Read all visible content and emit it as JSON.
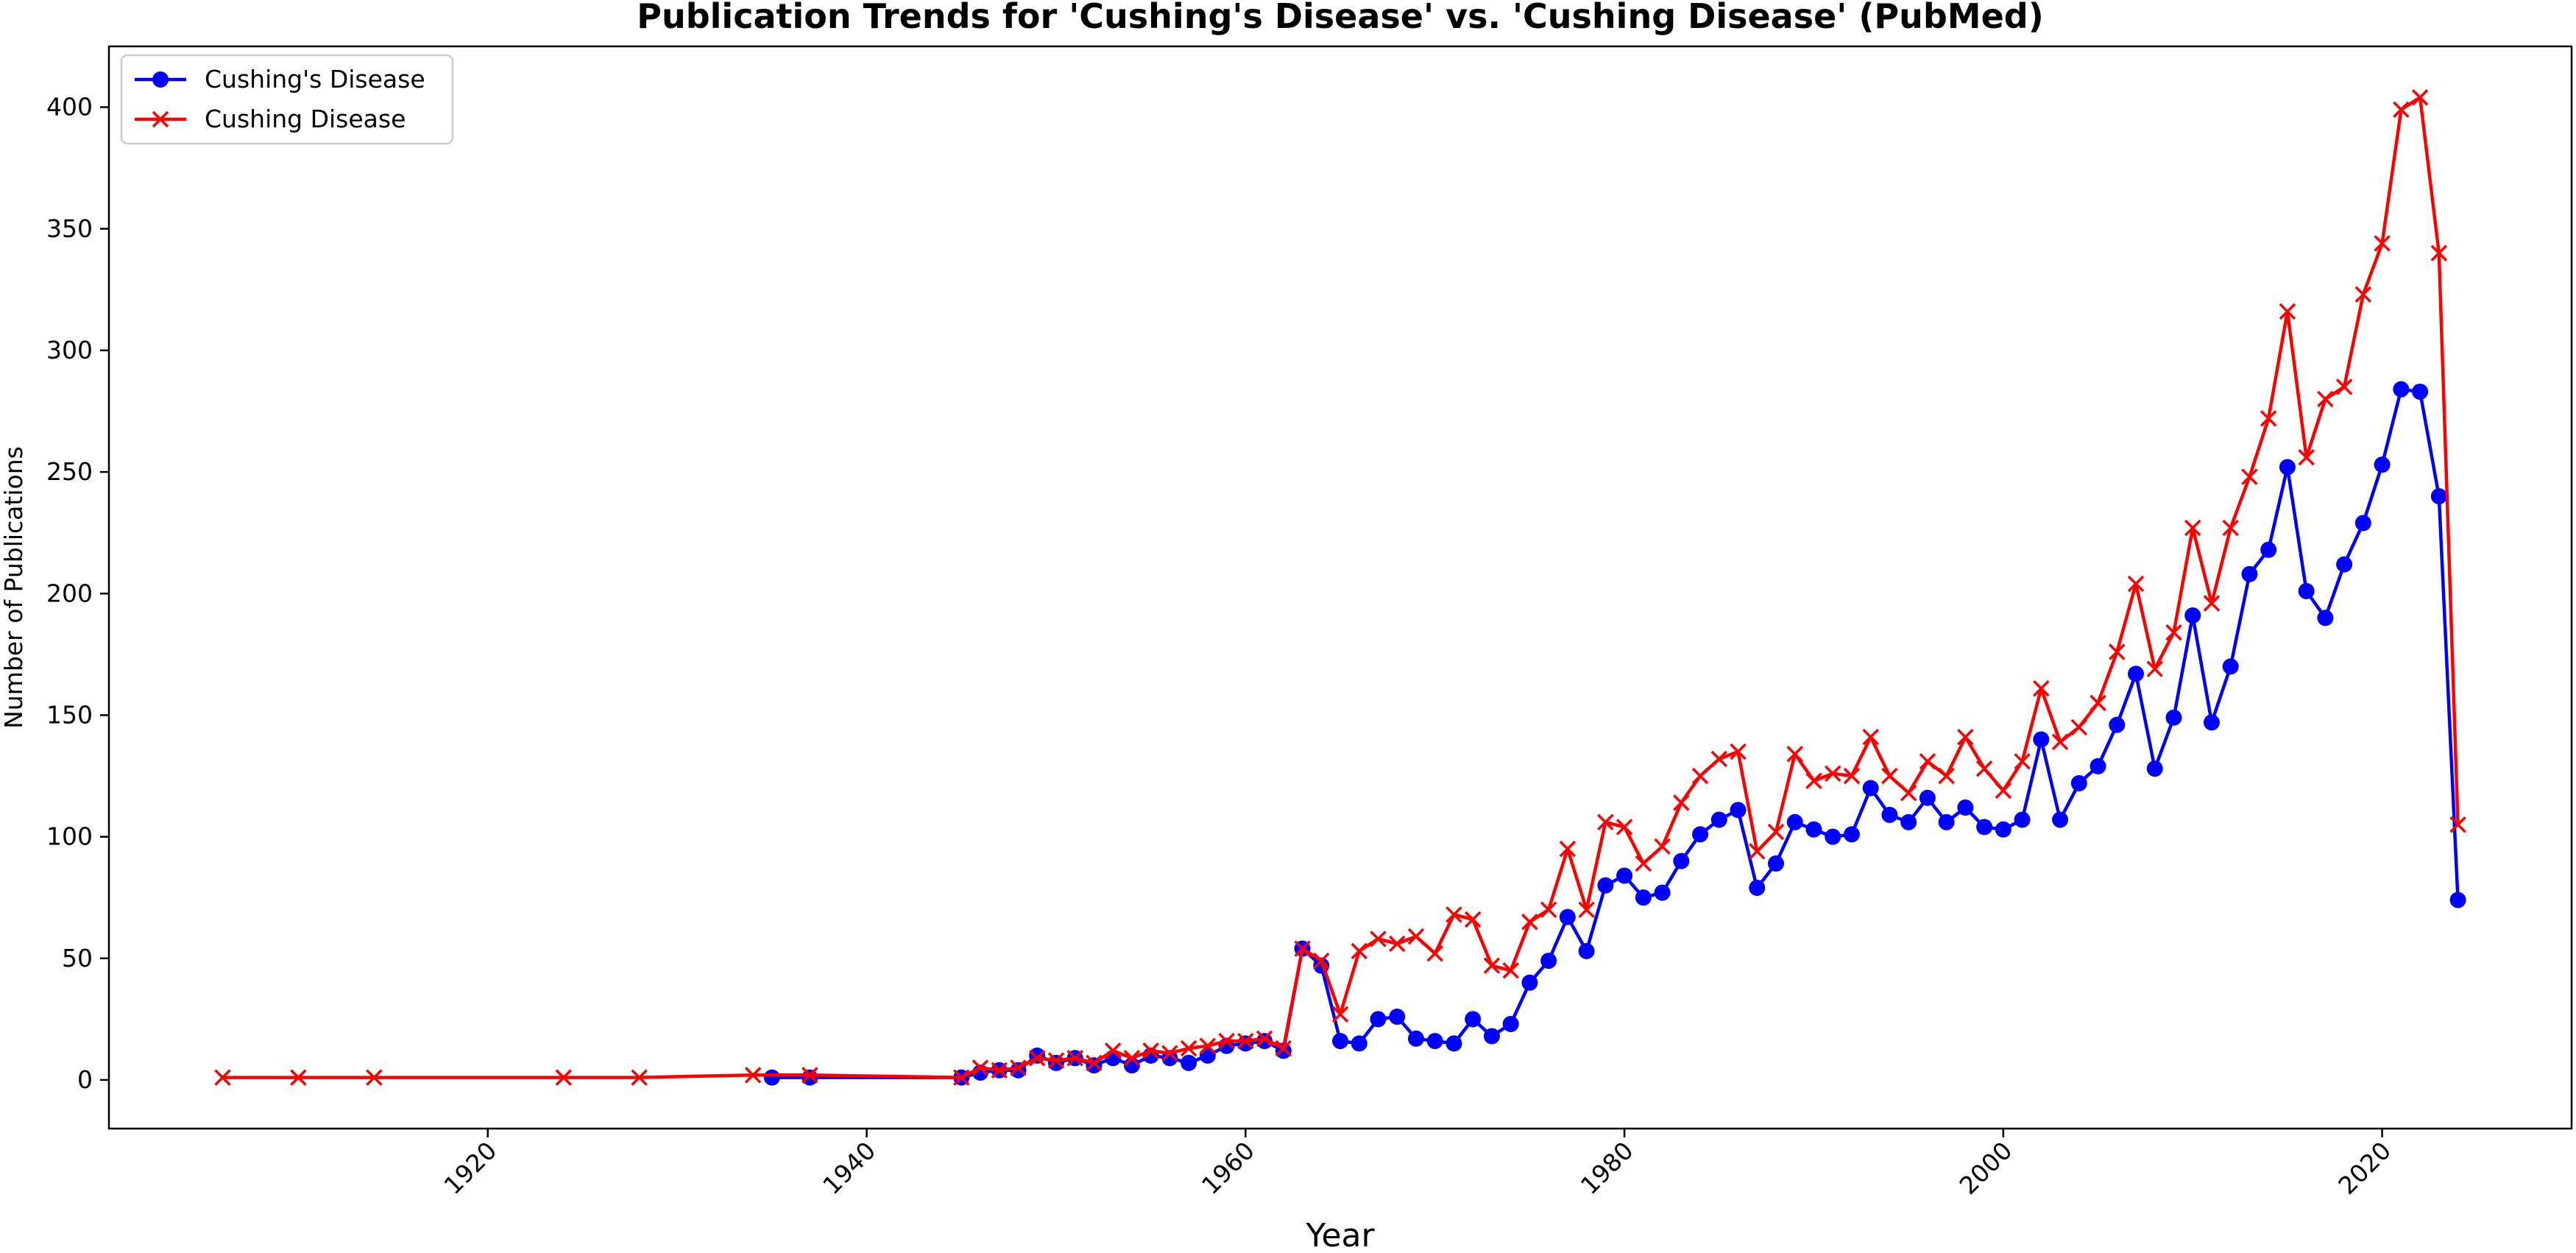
{
  "chart_data": {
    "type": "line",
    "title": "Publication Trends for 'Cushing's Disease' vs. 'Cushing Disease' (PubMed)",
    "xlabel": "Year",
    "ylabel": "Number of Publications",
    "xlim": [
      1900,
      2030
    ],
    "ylim": [
      -20,
      425
    ],
    "xticks": [
      1920,
      1940,
      1960,
      1980,
      2000,
      2020
    ],
    "yticks": [
      0,
      50,
      100,
      150,
      200,
      250,
      300,
      350,
      400
    ],
    "grid": false,
    "legend_position": "top-left",
    "series": [
      {
        "name": "Cushing's Disease",
        "color": "#0000ff",
        "marker": "circle",
        "x": [
          1935,
          1937,
          1945,
          1946,
          1947,
          1948,
          1949,
          1950,
          1951,
          1952,
          1953,
          1954,
          1955,
          1956,
          1957,
          1958,
          1959,
          1960,
          1961,
          1962,
          1963,
          1964,
          1965,
          1966,
          1967,
          1968,
          1969,
          1970,
          1971,
          1972,
          1973,
          1974,
          1975,
          1976,
          1977,
          1978,
          1979,
          1980,
          1981,
          1982,
          1983,
          1984,
          1985,
          1986,
          1987,
          1988,
          1989,
          1990,
          1991,
          1992,
          1993,
          1994,
          1995,
          1996,
          1997,
          1998,
          1999,
          2000,
          2001,
          2002,
          2003,
          2004,
          2005,
          2006,
          2007,
          2008,
          2009,
          2010,
          2011,
          2012,
          2013,
          2014,
          2015,
          2016,
          2017,
          2018,
          2019,
          2020,
          2021,
          2022,
          2023,
          2024
        ],
        "y": [
          1,
          1,
          1,
          3,
          4,
          4,
          10,
          7,
          9,
          6,
          9,
          6,
          10,
          9,
          7,
          10,
          14,
          15,
          16,
          12,
          54,
          47,
          16,
          15,
          25,
          26,
          17,
          16,
          15,
          25,
          18,
          23,
          40,
          49,
          67,
          53,
          80,
          84,
          75,
          77,
          90,
          101,
          107,
          111,
          79,
          89,
          106,
          103,
          100,
          101,
          120,
          109,
          106,
          116,
          106,
          112,
          104,
          103,
          107,
          140,
          107,
          122,
          129,
          146,
          167,
          128,
          149,
          191,
          147,
          170,
          208,
          218,
          252,
          201,
          190,
          212,
          229,
          253,
          284,
          283,
          240,
          74
        ]
      },
      {
        "name": "Cushing Disease",
        "color": "#ff0000",
        "marker": "x",
        "x": [
          1906,
          1910,
          1914,
          1924,
          1928,
          1934,
          1937,
          1945,
          1946,
          1947,
          1948,
          1949,
          1950,
          1951,
          1952,
          1953,
          1954,
          1955,
          1956,
          1957,
          1958,
          1959,
          1960,
          1961,
          1962,
          1963,
          1964,
          1965,
          1966,
          1967,
          1968,
          1969,
          1970,
          1971,
          1972,
          1973,
          1974,
          1975,
          1976,
          1977,
          1978,
          1979,
          1980,
          1981,
          1982,
          1983,
          1984,
          1985,
          1986,
          1987,
          1988,
          1989,
          1990,
          1991,
          1992,
          1993,
          1994,
          1995,
          1996,
          1997,
          1998,
          1999,
          2000,
          2001,
          2002,
          2003,
          2004,
          2005,
          2006,
          2007,
          2008,
          2009,
          2010,
          2011,
          2012,
          2013,
          2014,
          2015,
          2016,
          2017,
          2018,
          2019,
          2020,
          2021,
          2022,
          2023,
          2024
        ],
        "y": [
          1,
          1,
          1,
          1,
          1,
          2,
          2,
          1,
          5,
          4,
          5,
          9,
          8,
          9,
          7,
          12,
          9,
          12,
          11,
          13,
          14,
          16,
          16,
          17,
          13,
          54,
          49,
          27,
          53,
          58,
          56,
          59,
          52,
          68,
          66,
          47,
          45,
          65,
          70,
          95,
          70,
          106,
          104,
          89,
          96,
          114,
          125,
          132,
          135,
          94,
          102,
          134,
          123,
          126,
          125,
          141,
          125,
          118,
          131,
          125,
          141,
          128,
          119,
          131,
          161,
          139,
          145,
          155,
          176,
          204,
          169,
          184,
          227,
          196,
          227,
          248,
          272,
          316,
          256,
          280,
          285,
          323,
          344,
          399,
          404,
          340,
          105
        ]
      }
    ]
  }
}
